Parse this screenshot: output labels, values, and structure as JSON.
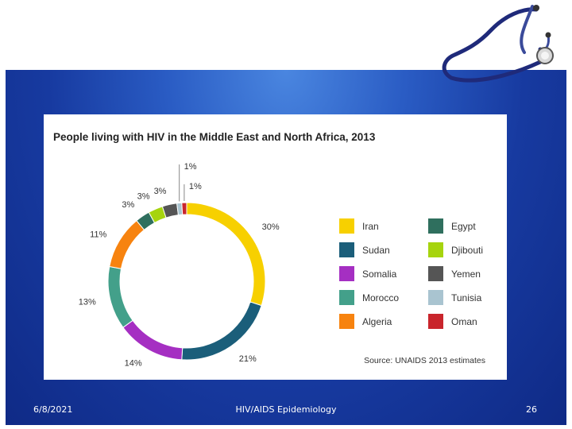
{
  "slide": {
    "footer_date": "6/8/2021",
    "footer_title": "HIV/AIDS Epidemiology",
    "page_number": "26"
  },
  "chart_data": {
    "type": "pie",
    "donut": true,
    "title": "People living with HIV in the Middle East and North Africa, 2013",
    "source": "Source: UNAIDS 2013 estimates",
    "legend_position": "right",
    "slices": [
      {
        "name": "Iran",
        "value": 30,
        "label": "30%",
        "color": "#f7d000"
      },
      {
        "name": "Sudan",
        "value": 21,
        "label": "21%",
        "color": "#1b5e7a"
      },
      {
        "name": "Somalia",
        "value": 14,
        "label": "14%",
        "color": "#a52fc2"
      },
      {
        "name": "Morocco",
        "value": 13,
        "label": "13%",
        "color": "#43a08a"
      },
      {
        "name": "Algeria",
        "value": 11,
        "label": "11%",
        "color": "#f7830f"
      },
      {
        "name": "Egypt",
        "value": 3,
        "label": "3%",
        "color": "#2f6f5e"
      },
      {
        "name": "Djibouti",
        "value": 3,
        "label": "3%",
        "color": "#a6d40e"
      },
      {
        "name": "Yemen",
        "value": 3,
        "label": "3%",
        "color": "#555555"
      },
      {
        "name": "Tunisia",
        "value": 1,
        "label": "1%",
        "color": "#a9c4d0"
      },
      {
        "name": "Oman",
        "value": 1,
        "label": "1%",
        "color": "#c9252c"
      }
    ],
    "legend_left": [
      "Iran",
      "Sudan",
      "Somalia",
      "Morocco",
      "Algeria"
    ],
    "legend_right": [
      "Egypt",
      "Djibouti",
      "Yemen",
      "Tunisia",
      "Oman"
    ]
  }
}
